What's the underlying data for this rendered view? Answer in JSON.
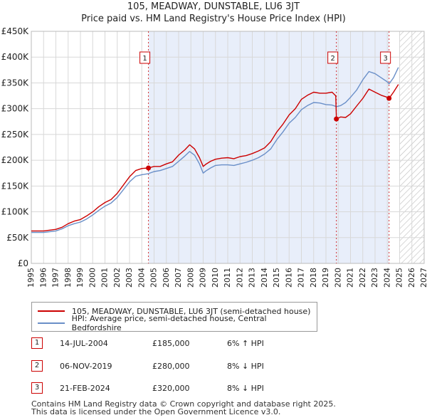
{
  "title_line1": "105, MEADWAY, DUNSTABLE, LU6 3JT",
  "title_line2": "Price paid vs. HM Land Registry's House Price Index (HPI)",
  "legend": {
    "red_label": "105, MEADWAY, DUNSTABLE, LU6 3JT (semi-detached house)",
    "blue_label": "HPI: Average price, semi-detached house, Central Bedfordshire"
  },
  "colors": {
    "price_line": "#cc0000",
    "hpi_line": "#6a8fc8",
    "shade": "#e8eefa",
    "grid": "#d8d8d8"
  },
  "sales": [
    {
      "num": "1",
      "date": "14-JUL-2004",
      "price": "£185,000",
      "hpi": "6% ↑ HPI"
    },
    {
      "num": "2",
      "date": "06-NOV-2019",
      "price": "£280,000",
      "hpi": "8% ↓ HPI"
    },
    {
      "num": "3",
      "date": "21-FEB-2024",
      "price": "£320,000",
      "hpi": "8% ↓ HPI"
    }
  ],
  "footer": {
    "line1": "Contains HM Land Registry data © Crown copyright and database right 2025.",
    "line2": "This data is licensed under the Open Government Licence v3.0."
  },
  "chart_data": {
    "type": "line",
    "title": "105, MEADWAY, DUNSTABLE, LU6 3JT — Price paid vs. HM Land Registry's House Price Index (HPI)",
    "xlabel": "",
    "ylabel": "",
    "xlim": [
      1995,
      2027
    ],
    "ylim": [
      0,
      450000
    ],
    "x_ticks": [
      1995,
      1996,
      1997,
      1998,
      1999,
      2000,
      2001,
      2002,
      2003,
      2004,
      2005,
      2006,
      2007,
      2008,
      2009,
      2010,
      2011,
      2012,
      2013,
      2014,
      2015,
      2016,
      2017,
      2018,
      2019,
      2020,
      2021,
      2022,
      2023,
      2024,
      2025,
      2026,
      2027
    ],
    "x_tick_labels": [
      "1995",
      "1996",
      "1997",
      "1998",
      "1999",
      "2000",
      "2001",
      "2002",
      "2003",
      "2004",
      "2005",
      "2006",
      "2007",
      "2008",
      "2009",
      "2010",
      "2011",
      "2012",
      "2013",
      "2014",
      "2015",
      "2016",
      "2017",
      "2018",
      "2019",
      "2020",
      "2021",
      "2022",
      "2023",
      "2024",
      "2025",
      "2026",
      "2027"
    ],
    "y_ticks": [
      0,
      50000,
      100000,
      150000,
      200000,
      250000,
      300000,
      350000,
      400000,
      450000
    ],
    "y_tick_labels": [
      "£0",
      "£50K",
      "£100K",
      "£150K",
      "£200K",
      "£250K",
      "£300K",
      "£350K",
      "£400K",
      "£450K"
    ],
    "grid": true,
    "shaded_ownership_span": [
      2004.54,
      2024.14
    ],
    "future_hatch_from": 2025.0,
    "series": [
      {
        "name": "105, MEADWAY, DUNSTABLE, LU6 3JT (semi-detached house)",
        "color": "#cc0000",
        "x": [
          1995.0,
          1996.0,
          1997.0,
          1997.5,
          1998.0,
          1998.5,
          1999.0,
          1999.5,
          2000.0,
          2000.5,
          2001.0,
          2001.5,
          2002.0,
          2002.5,
          2003.0,
          2003.5,
          2004.0,
          2004.54,
          2005.0,
          2005.5,
          2006.0,
          2006.5,
          2007.0,
          2007.5,
          2007.9,
          2008.3,
          2008.7,
          2009.0,
          2009.2,
          2009.6,
          2010.0,
          2010.5,
          2011.0,
          2011.5,
          2012.0,
          2012.5,
          2013.0,
          2013.5,
          2014.0,
          2014.5,
          2015.0,
          2015.5,
          2016.0,
          2016.5,
          2017.0,
          2017.5,
          2018.0,
          2018.5,
          2019.0,
          2019.5,
          2019.8,
          2019.85,
          2020.2,
          2020.6,
          2021.0,
          2021.5,
          2022.0,
          2022.5,
          2023.0,
          2023.5,
          2024.0,
          2024.14,
          2024.5,
          2024.9
        ],
        "values": [
          63000,
          63000,
          66000,
          70000,
          77000,
          82000,
          85000,
          92000,
          100000,
          110000,
          118000,
          124000,
          136000,
          152000,
          168000,
          180000,
          184000,
          185000,
          188000,
          188000,
          193000,
          197000,
          210000,
          220000,
          230000,
          222000,
          205000,
          188000,
          192000,
          198000,
          202000,
          204000,
          205000,
          203000,
          207000,
          209000,
          213000,
          218000,
          224000,
          236000,
          255000,
          270000,
          288000,
          300000,
          318000,
          326000,
          332000,
          330000,
          330000,
          332000,
          325000,
          280000,
          284000,
          283000,
          290000,
          305000,
          320000,
          338000,
          332000,
          326000,
          322000,
          320000,
          332000,
          347000
        ]
      },
      {
        "name": "HPI: Average price, semi-detached house, Central Bedfordshire",
        "color": "#6a8fc8",
        "x": [
          1995.0,
          1996.0,
          1997.0,
          1997.5,
          1998.0,
          1998.5,
          1999.0,
          1999.5,
          2000.0,
          2000.5,
          2001.0,
          2001.5,
          2002.0,
          2002.5,
          2003.0,
          2003.5,
          2004.0,
          2004.54,
          2005.0,
          2005.5,
          2006.0,
          2006.5,
          2007.0,
          2007.5,
          2007.9,
          2008.3,
          2008.7,
          2009.0,
          2009.2,
          2009.6,
          2010.0,
          2010.5,
          2011.0,
          2011.5,
          2012.0,
          2012.5,
          2013.0,
          2013.5,
          2014.0,
          2014.5,
          2015.0,
          2015.5,
          2016.0,
          2016.5,
          2017.0,
          2017.5,
          2018.0,
          2018.5,
          2019.0,
          2019.5,
          2019.85,
          2020.2,
          2020.6,
          2021.0,
          2021.5,
          2022.0,
          2022.5,
          2023.0,
          2023.5,
          2024.0,
          2024.14,
          2024.5,
          2024.9
        ],
        "values": [
          60000,
          60000,
          63000,
          67000,
          73000,
          77000,
          80000,
          86000,
          94000,
          103000,
          111000,
          117000,
          128000,
          143000,
          158000,
          169000,
          172000,
          174000,
          178000,
          180000,
          184000,
          188000,
          198000,
          208000,
          217000,
          210000,
          193000,
          175000,
          179000,
          185000,
          190000,
          191000,
          191000,
          190000,
          193000,
          196000,
          200000,
          205000,
          212000,
          222000,
          240000,
          255000,
          272000,
          283000,
          298000,
          306000,
          312000,
          311000,
          308000,
          307000,
          304000,
          306000,
          312000,
          322000,
          336000,
          356000,
          372000,
          368000,
          360000,
          352000,
          348000,
          360000,
          380000
        ]
      }
    ]
  }
}
